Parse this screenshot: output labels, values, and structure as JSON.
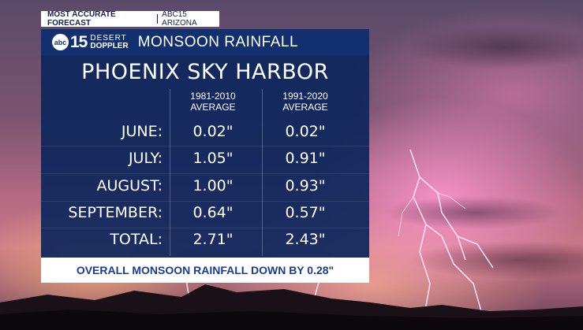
{
  "top_bar": {
    "segment_1": "MOST ACCURATE FORECAST",
    "segment_2": "ABC15 ARIZONA"
  },
  "logo": {
    "circle_text": "abc",
    "number": "15",
    "line_1": "DESERT",
    "line_2": "DOPPLER"
  },
  "header": {
    "title": "MONSOON RAINFALL"
  },
  "panel": {
    "title": "PHOENIX SKY HARBOR"
  },
  "columns": [
    {
      "line_1": "1981-2010",
      "line_2": "AVERAGE"
    },
    {
      "line_1": "1991-2020",
      "line_2": "AVERAGE"
    }
  ],
  "rows": [
    {
      "label": "JUNE:",
      "v1": "0.02\"",
      "v2": "0.02\""
    },
    {
      "label": "JULY:",
      "v1": "1.05\"",
      "v2": "0.91\""
    },
    {
      "label": "AUGUST:",
      "v1": "1.00\"",
      "v2": "0.93\""
    },
    {
      "label": "SEPTEMBER:",
      "v1": "0.64\"",
      "v2": "0.57\""
    },
    {
      "label": "TOTAL:",
      "v1": "2.71\"",
      "v2": "2.43\""
    }
  ],
  "footer": {
    "text": "OVERALL MONSOON RAINFALL DOWN BY 0.28\""
  },
  "colors": {
    "panel_blue": "#0c265c",
    "header_blue": "#12306f",
    "footer_text": "#1a3d8f"
  }
}
